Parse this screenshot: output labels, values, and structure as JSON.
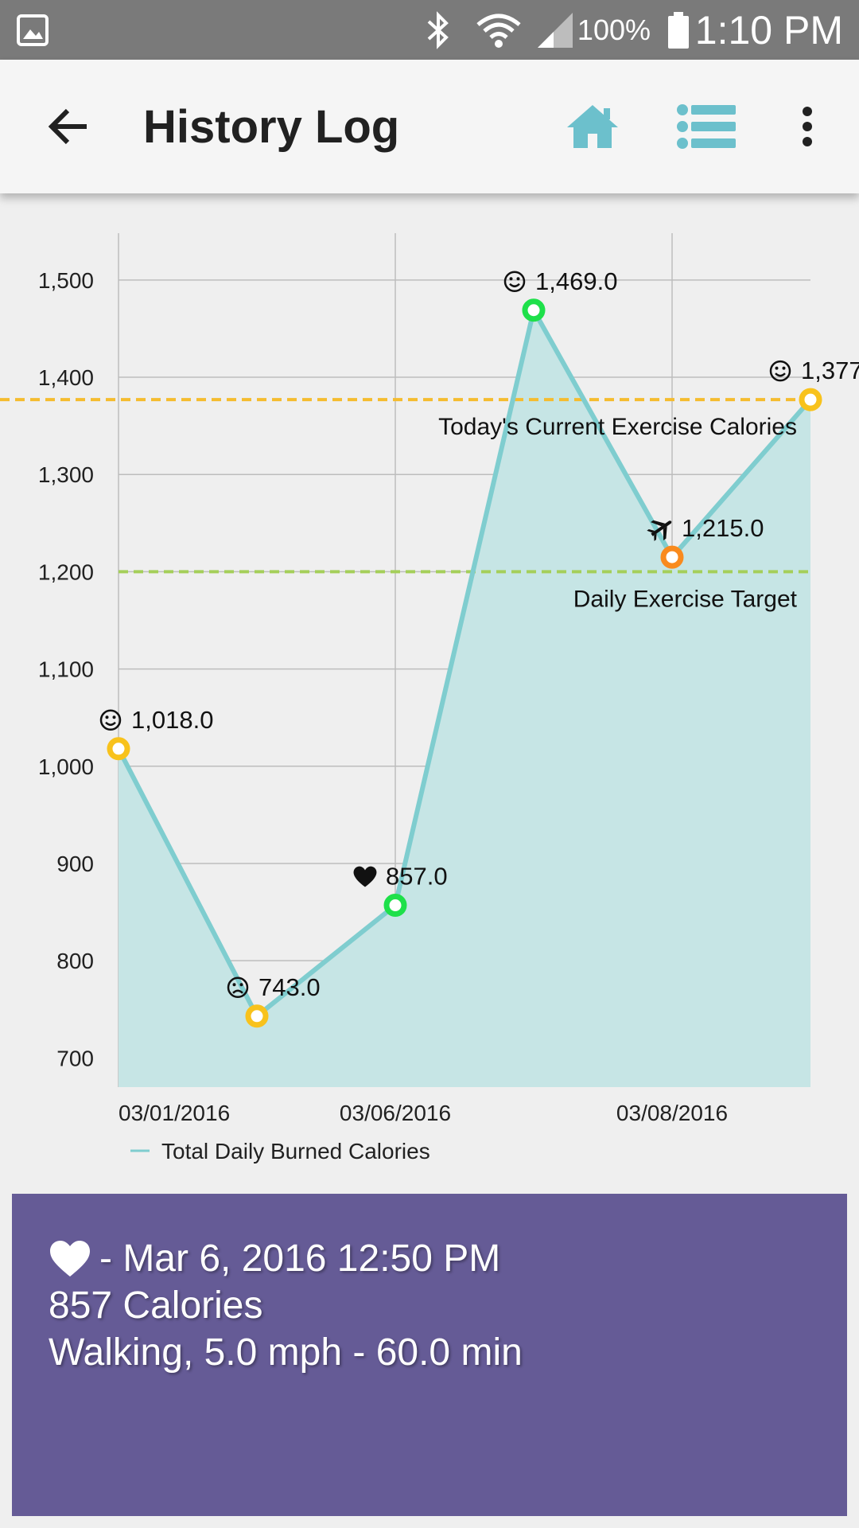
{
  "status_bar": {
    "battery_percent": "100%",
    "time": "1:10 PM",
    "icons": [
      "gallery-icon",
      "bluetooth-icon",
      "wifi-icon",
      "signal-icon",
      "battery-icon"
    ]
  },
  "app_bar": {
    "title": "History Log",
    "accent_color": "#6cc0cc",
    "icons": [
      "back-arrow-icon",
      "home-icon",
      "list-icon",
      "more-vert-icon"
    ]
  },
  "chart_data": {
    "type": "area",
    "x": [
      "03/01/2016",
      "",
      "03/06/2016",
      "",
      "03/08/2016",
      ""
    ],
    "xticks": [
      "03/01/2016",
      "03/06/2016",
      "03/08/2016"
    ],
    "ylim": [
      670,
      1540
    ],
    "yticks": [
      "700",
      "800",
      "900",
      "1,000",
      "1,100",
      "1,200",
      "1,300",
      "1,400",
      "1,500"
    ],
    "grid": true,
    "series": [
      {
        "name": "Total Daily Burned Calories",
        "values": [
          1018,
          743,
          857,
          1469,
          1215,
          1377
        ],
        "labels": [
          "1,018.0",
          "743.0",
          "857.0",
          "1,469.0",
          "1,215.0",
          "1,377"
        ],
        "markers": [
          "smile",
          "frown",
          "heart",
          "smile",
          "plane",
          "smile"
        ],
        "point_colors": [
          "#f8c21c",
          "#f8c21c",
          "#1ee04a",
          "#1ee04a",
          "#f98a1e",
          "#f8c21c"
        ],
        "line_color": "#7fcdcf",
        "fill_color": "#c6e5e5"
      }
    ],
    "reference_lines": [
      {
        "label": "Today's Current Exercise Calories",
        "value": 1377,
        "color": "#f5bc2e"
      },
      {
        "label": "Daily Exercise Target",
        "value": 1200,
        "color": "#a5cf5a"
      }
    ],
    "legend": {
      "position": "bottom-left",
      "label": "Total Daily Burned Calories"
    }
  },
  "detail": {
    "header": "- Mar 6, 2016 12:50 PM",
    "calories": "857 Calories",
    "activity": "Walking, 5.0 mph - 60.0 min",
    "icon": "heart-icon",
    "background_color": "#655b96"
  }
}
